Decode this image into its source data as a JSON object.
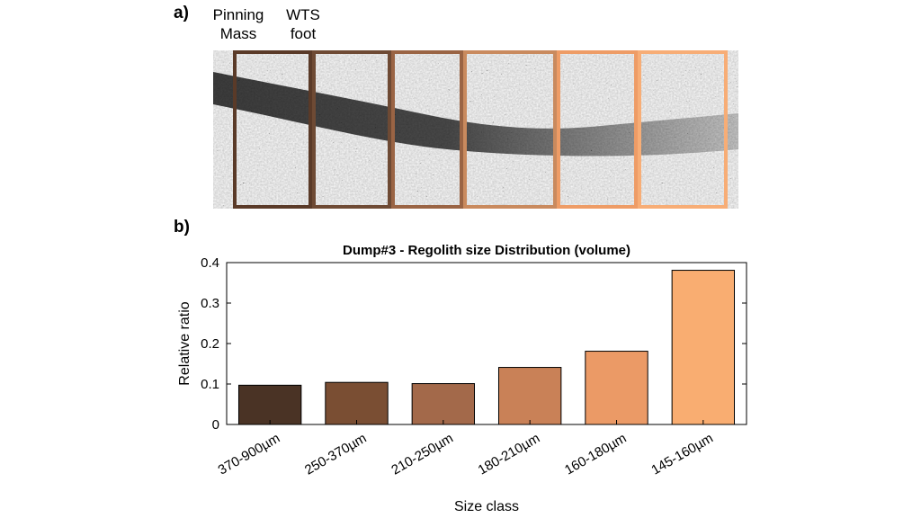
{
  "panel_a": {
    "label": "a)",
    "annotations": [
      "Pinning Mass",
      "WTS foot"
    ],
    "frame_colors": [
      "#5a3a28",
      "#6e4a34",
      "#9a6444",
      "#c98a5e",
      "#ee9c66",
      "#f7ad76"
    ]
  },
  "panel_b": {
    "label": "b)"
  },
  "chart_data": {
    "type": "bar",
    "title": "Dump#3 - Regolith size Distribution (volume)",
    "xlabel": "Size class",
    "ylabel": "Relative ratio",
    "categories": [
      "370-900µm",
      "250-370µm",
      "210-250µm",
      "180-210µm",
      "160-180µm",
      "145-160µm"
    ],
    "values": [
      0.097,
      0.104,
      0.101,
      0.141,
      0.181,
      0.381
    ],
    "colors": [
      "#4a3325",
      "#7a4e33",
      "#a3694a",
      "#c98157",
      "#eb9a66",
      "#f9ad71"
    ],
    "ylim": [
      0,
      0.4
    ],
    "yticks": [
      "0",
      "0.1",
      "0.2",
      "0.3",
      "0.4"
    ],
    "grid": false,
    "legend": "none"
  }
}
